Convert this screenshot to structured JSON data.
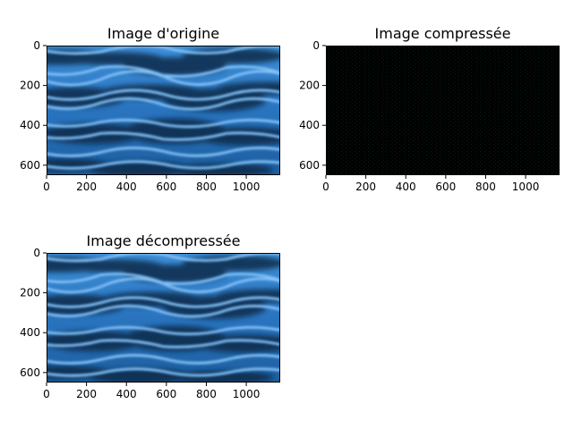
{
  "window": {
    "width": 640,
    "height": 480
  },
  "chart_data": [
    {
      "type": "image",
      "title": "Image d'origine",
      "content": "ocean-waves-blue",
      "image_size": [
        1170,
        650
      ],
      "xticks": [
        0,
        200,
        400,
        600,
        800,
        1000
      ],
      "yticks": [
        0,
        200,
        400,
        600
      ],
      "xlim": [
        0,
        1170
      ],
      "ylim": [
        650,
        0
      ],
      "colors": {
        "deep": "#0a2a4a",
        "mid": "#1f6fc0",
        "light": "#5aa8f0",
        "highlight": "#b5e2ff"
      }
    },
    {
      "type": "image",
      "title": "Image compressée",
      "content": "near-black-compressed",
      "image_size": [
        1170,
        650
      ],
      "xticks": [
        0,
        200,
        400,
        600,
        800,
        1000
      ],
      "yticks": [
        0,
        200,
        400,
        600
      ],
      "xlim": [
        0,
        1170
      ],
      "ylim": [
        650,
        0
      ],
      "colors": {
        "base": "#000000",
        "speckle": "#0e3a1a"
      }
    },
    {
      "type": "image",
      "title": "Image décompressée",
      "content": "ocean-waves-blue",
      "image_size": [
        1170,
        650
      ],
      "xticks": [
        0,
        200,
        400,
        600,
        800,
        1000
      ],
      "yticks": [
        0,
        200,
        400,
        600
      ],
      "xlim": [
        0,
        1170
      ],
      "ylim": [
        650,
        0
      ],
      "colors": {
        "deep": "#0a2a4a",
        "mid": "#1f6fc0",
        "light": "#5aa8f0",
        "highlight": "#b5e2ff"
      }
    }
  ]
}
